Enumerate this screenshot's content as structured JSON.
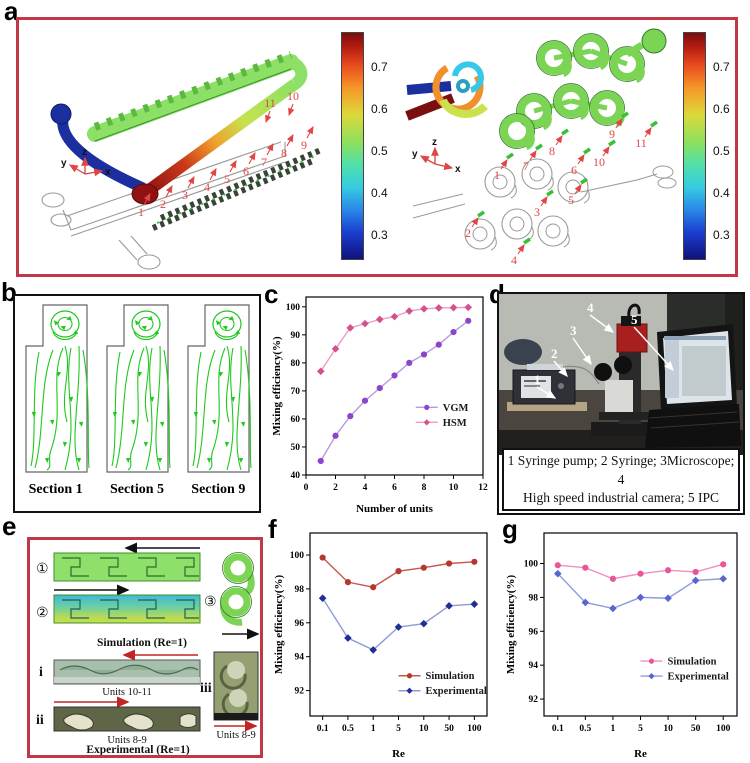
{
  "panels": {
    "a": {
      "letter": "a",
      "colorbar_ticks": [
        "0.7",
        "0.6",
        "0.5",
        "0.4",
        "0.3"
      ],
      "left_numbers": [
        "1",
        "2",
        "3",
        "4",
        "5",
        "6",
        "7",
        "8",
        "9",
        "10",
        "11"
      ],
      "right_numbers": [
        "1",
        "2",
        "3",
        "4",
        "5",
        "6",
        "7",
        "8",
        "9",
        "10",
        "11"
      ],
      "axis_triad": {
        "x": "x",
        "y": "y",
        "z": "z"
      }
    },
    "b": {
      "letter": "b",
      "sections": [
        "Section 1",
        "Section 5",
        "Section 9"
      ]
    },
    "c": {
      "letter": "c"
    },
    "d": {
      "letter": "d",
      "photo_numbers": [
        "1",
        "2",
        "3",
        "4",
        "5"
      ],
      "caption_line1": "1 Syringe pump;  2 Syringe;  3Microscope;  4",
      "caption_line2": "High speed industrial camera;  5 IPC"
    },
    "e": {
      "letter": "e",
      "sim_markers": [
        "①",
        "②",
        "③"
      ],
      "exp_markers": [
        "i",
        "ii",
        "iii"
      ],
      "captions": {
        "simulation": "Simulation  (Re=1)",
        "units_i": "Units 10-11",
        "units_ii": "Units 8-9",
        "units_iii": "Units 8-9",
        "experimental": "Experimental  (Re=1)"
      }
    },
    "f": {
      "letter": "f"
    },
    "g": {
      "letter": "g"
    }
  },
  "chart_data": [
    {
      "id": "c",
      "type": "line",
      "xlabel": "Number of units",
      "ylabel": "Mixing efficiency(%)",
      "x": [
        1,
        2,
        3,
        4,
        5,
        6,
        7,
        8,
        9,
        10,
        11
      ],
      "xlim": [
        0,
        12
      ],
      "xticks": [
        0,
        2,
        4,
        6,
        8,
        10,
        12
      ],
      "ylim": [
        40,
        103.5
      ],
      "yticks": [
        40,
        50,
        60,
        70,
        80,
        90,
        100
      ],
      "grid": false,
      "legend_position": "right-center",
      "series": [
        {
          "name": "VGM",
          "marker": "circle",
          "color": "#8b45cc",
          "line_color": "#b79ae0",
          "values": [
            45,
            54,
            61,
            66.5,
            71,
            75.5,
            80,
            83,
            86.5,
            91,
            95
          ]
        },
        {
          "name": "HSM",
          "marker": "diamond",
          "color": "#d6508e",
          "line_color": "#e79ec0",
          "values": [
            77,
            85,
            92.5,
            94,
            95.5,
            96.5,
            98.5,
            99.3,
            99.6,
            99.7,
            99.8
          ]
        }
      ],
      "legend": {
        "x": 0.62,
        "y": 0.62
      }
    },
    {
      "id": "f",
      "type": "line",
      "xlabel": "Re",
      "ylabel": "Mixing efficiency(%)",
      "categories": [
        "0.1",
        "0.5",
        "1",
        "5",
        "10",
        "50",
        "100"
      ],
      "ylim": [
        90.5,
        101.3
      ],
      "yticks": [
        92,
        94,
        96,
        98,
        100
      ],
      "grid": false,
      "legend_position": "lower-right",
      "series": [
        {
          "name": "Simulation",
          "marker": "circle",
          "color": "#b5372e",
          "line_color": "#c4584f",
          "values": [
            99.85,
            98.4,
            98.1,
            99.05,
            99.25,
            99.5,
            99.6
          ]
        },
        {
          "name": "Experimental",
          "marker": "diamond",
          "color": "#1f2f93",
          "line_color": "#8f9bd8",
          "values": [
            97.45,
            95.1,
            94.4,
            95.75,
            95.95,
            97.0,
            97.1
          ]
        }
      ],
      "legend": {
        "x": 0.5,
        "y": 0.78
      }
    },
    {
      "id": "g",
      "type": "line",
      "xlabel": "Re",
      "ylabel": "Mixing efficiency(%)",
      "categories": [
        "0.1",
        "0.5",
        "1",
        "5",
        "10",
        "50",
        "100"
      ],
      "ylim": [
        91,
        101.8
      ],
      "yticks": [
        92,
        94,
        96,
        98,
        100
      ],
      "grid": false,
      "legend_position": "lower-right",
      "series": [
        {
          "name": "Simulation",
          "marker": "circle",
          "color": "#e8559a",
          "line_color": "#f090c0",
          "values": [
            99.9,
            99.75,
            99.1,
            99.4,
            99.6,
            99.5,
            99.95
          ]
        },
        {
          "name": "Experimental",
          "marker": "diamond",
          "color": "#5a66cf",
          "line_color": "#8f9bdd",
          "values": [
            99.4,
            97.7,
            97.35,
            98.0,
            97.95,
            99.0,
            99.1
          ]
        }
      ],
      "legend": {
        "x": 0.5,
        "y": 0.7
      }
    }
  ]
}
